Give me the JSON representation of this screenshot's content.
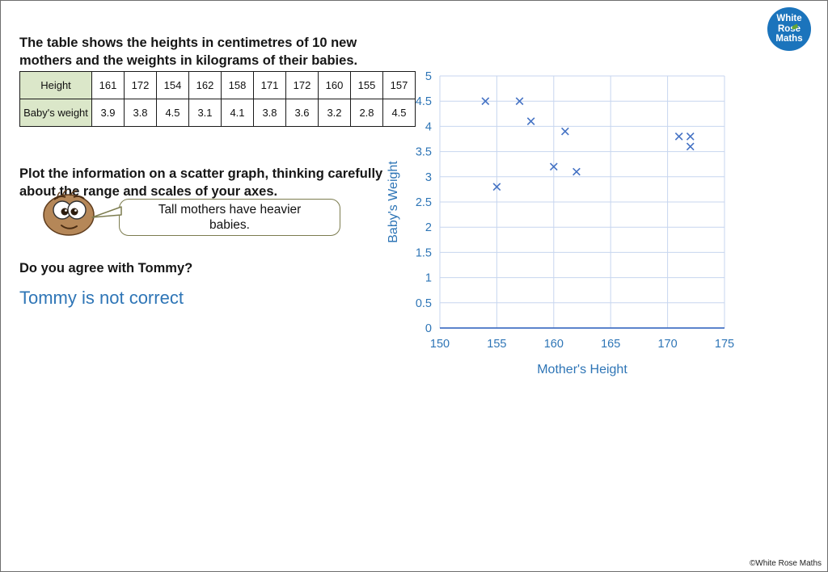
{
  "page": {
    "intro": "The table shows the heights in centimetres of 10 new mothers and the weights in kilograms of their babies.",
    "plot_instruction": "Plot the information on a scatter graph, thinking carefully about the range and scales of your axes.",
    "question": "Do you agree with Tommy?",
    "answer": "Tommy is not correct",
    "answer_color": "#2E75B6",
    "footer": "©White Rose Maths"
  },
  "logo": {
    "line1": "White",
    "line2": "Rose",
    "line3": "Maths",
    "bg": "#1b74bc"
  },
  "tommy": {
    "speech": "Tall mothers have heavier babies."
  },
  "table": {
    "row1_header": "Height",
    "row1_values": [
      "161",
      "172",
      "154",
      "162",
      "158",
      "171",
      "172",
      "160",
      "155",
      "157"
    ],
    "row2_header": "Baby's weight",
    "row2_values": [
      "3.9",
      "3.8",
      "4.5",
      "3.1",
      "4.1",
      "3.8",
      "3.6",
      "3.2",
      "2.8",
      "4.5"
    ]
  },
  "chart_data": {
    "type": "scatter",
    "title": "",
    "xlabel": "Mother's Height",
    "ylabel": "Baby's Weight",
    "xlim": [
      150,
      175
    ],
    "ylim": [
      0,
      5
    ],
    "x_ticks": [
      150,
      155,
      160,
      165,
      170,
      175
    ],
    "y_ticks": [
      0,
      0.5,
      1,
      1.5,
      2,
      2.5,
      3,
      3.5,
      4,
      4.5,
      5
    ],
    "grid": true,
    "legend_position": "none",
    "marker": "x",
    "marker_color": "#4472C4",
    "grid_color": "#c7d6ef",
    "axis_color": "#4472C4",
    "label_color": "#2E75B6",
    "points": [
      {
        "x": 161,
        "y": 3.9
      },
      {
        "x": 172,
        "y": 3.8
      },
      {
        "x": 154,
        "y": 4.5
      },
      {
        "x": 162,
        "y": 3.1
      },
      {
        "x": 158,
        "y": 4.1
      },
      {
        "x": 171,
        "y": 3.8
      },
      {
        "x": 172,
        "y": 3.6
      },
      {
        "x": 160,
        "y": 3.2
      },
      {
        "x": 155,
        "y": 2.8
      },
      {
        "x": 157,
        "y": 4.5
      }
    ]
  }
}
